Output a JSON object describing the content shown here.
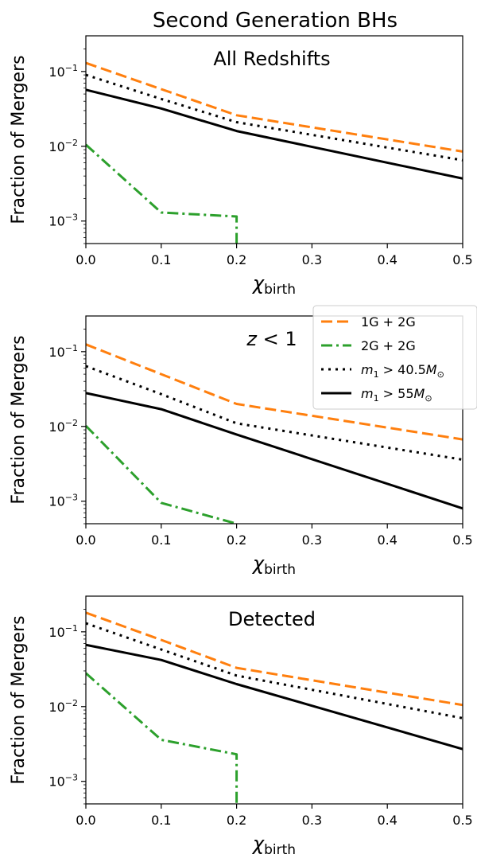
{
  "figure": {
    "title": "Second Generation BHs"
  },
  "legend": {
    "placement": "right, overlapping panel 2",
    "entries": [
      {
        "label": "1G + 2G",
        "series": "1G+2G"
      },
      {
        "label": "2G + 2G",
        "series": "2G+2G"
      },
      {
        "label_var": "m",
        "label_sub": "1",
        "label_mid": " > 40.5",
        "label_unit": "M",
        "label_unit_sub": "⊙",
        "series": "m1>40.5"
      },
      {
        "label_var": "m",
        "label_sub": "1",
        "label_mid": " > 55",
        "label_unit": "M",
        "label_unit_sub": "⊙",
        "series": "m1>55"
      }
    ]
  },
  "colors": {
    "1G+2G": "#ff7f0e",
    "2G+2G": "#2ca02c",
    "m1>40.5": "#000000",
    "m1>55": "#000000"
  },
  "chart_data": [
    {
      "type": "line",
      "annotation": "All Redshifts",
      "xlabel_main": "χ",
      "xlabel_sub": "birth",
      "ylabel": "Fraction of Mergers",
      "xlim": [
        0.0,
        0.5
      ],
      "ylim": [
        0.0005,
        0.3
      ],
      "yscale": "log",
      "xticks": [
        "0.0",
        "0.1",
        "0.2",
        "0.3",
        "0.4",
        "0.5"
      ],
      "yticks": [
        {
          "value": 0.1,
          "base": "10",
          "exp": "−1"
        },
        {
          "value": 0.01,
          "base": "10",
          "exp": "−2"
        },
        {
          "value": 0.001,
          "base": "10",
          "exp": "−3"
        }
      ],
      "series": [
        {
          "key": "1G+2G",
          "style": "dashed",
          "x": [
            0.0,
            0.1,
            0.2,
            0.5
          ],
          "y": [
            0.13,
            0.058,
            0.026,
            0.0085
          ]
        },
        {
          "key": "2G+2G",
          "style": "dashdot",
          "x": [
            0.0,
            0.1,
            0.2,
            0.2
          ],
          "y": [
            0.0105,
            0.0013,
            0.00115,
            0.0005
          ]
        },
        {
          "key": "m1>40.5",
          "style": "dotted",
          "x": [
            0.0,
            0.1,
            0.2,
            0.5
          ],
          "y": [
            0.09,
            0.043,
            0.021,
            0.0065
          ]
        },
        {
          "key": "m1>55",
          "style": "solid",
          "x": [
            0.0,
            0.1,
            0.2,
            0.5
          ],
          "y": [
            0.057,
            0.032,
            0.016,
            0.0037
          ]
        }
      ]
    },
    {
      "type": "line",
      "annotation_var": "z",
      "annotation_rest": " < 1",
      "xlabel_main": "χ",
      "xlabel_sub": "birth",
      "ylabel": "Fraction of Mergers",
      "xlim": [
        0.0,
        0.5
      ],
      "ylim": [
        0.0005,
        0.3
      ],
      "yscale": "log",
      "xticks": [
        "0.0",
        "0.1",
        "0.2",
        "0.3",
        "0.4",
        "0.5"
      ],
      "yticks": [
        {
          "value": 0.1,
          "base": "10",
          "exp": "−1"
        },
        {
          "value": 0.01,
          "base": "10",
          "exp": "−2"
        },
        {
          "value": 0.001,
          "base": "10",
          "exp": "−3"
        }
      ],
      "series": [
        {
          "key": "1G+2G",
          "style": "dashed",
          "x": [
            0.0,
            0.1,
            0.2,
            0.5
          ],
          "y": [
            0.125,
            0.05,
            0.02,
            0.0067
          ]
        },
        {
          "key": "2G+2G",
          "style": "dashdot",
          "x": [
            0.0,
            0.1,
            0.2
          ],
          "y": [
            0.0102,
            0.00095,
            0.0005
          ]
        },
        {
          "key": "m1>40.5",
          "style": "dotted",
          "x": [
            0.0,
            0.1,
            0.2,
            0.5
          ],
          "y": [
            0.064,
            0.027,
            0.011,
            0.0036
          ]
        },
        {
          "key": "m1>55",
          "style": "solid",
          "x": [
            0.0,
            0.1,
            0.2,
            0.5
          ],
          "y": [
            0.028,
            0.017,
            0.0078,
            0.0008
          ]
        }
      ]
    },
    {
      "type": "line",
      "annotation": "Detected",
      "xlabel_main": "χ",
      "xlabel_sub": "birth",
      "ylabel": "Fraction of Mergers",
      "xlim": [
        0.0,
        0.5
      ],
      "ylim": [
        0.0005,
        0.3
      ],
      "yscale": "log",
      "xticks": [
        "0.0",
        "0.1",
        "0.2",
        "0.3",
        "0.4",
        "0.5"
      ],
      "yticks": [
        {
          "value": 0.1,
          "base": "10",
          "exp": "−1"
        },
        {
          "value": 0.01,
          "base": "10",
          "exp": "−2"
        },
        {
          "value": 0.001,
          "base": "10",
          "exp": "−3"
        }
      ],
      "series": [
        {
          "key": "1G+2G",
          "style": "dashed",
          "x": [
            0.0,
            0.1,
            0.2,
            0.5
          ],
          "y": [
            0.18,
            0.078,
            0.033,
            0.0105
          ]
        },
        {
          "key": "2G+2G",
          "style": "dashdot",
          "x": [
            0.0,
            0.1,
            0.2,
            0.2
          ],
          "y": [
            0.028,
            0.0036,
            0.0023,
            0.0005
          ]
        },
        {
          "key": "m1>40.5",
          "style": "dotted",
          "x": [
            0.0,
            0.1,
            0.2,
            0.5
          ],
          "y": [
            0.13,
            0.058,
            0.026,
            0.007
          ]
        },
        {
          "key": "m1>55",
          "style": "solid",
          "x": [
            0.0,
            0.1,
            0.2,
            0.5
          ],
          "y": [
            0.067,
            0.042,
            0.02,
            0.0027
          ]
        }
      ]
    }
  ]
}
